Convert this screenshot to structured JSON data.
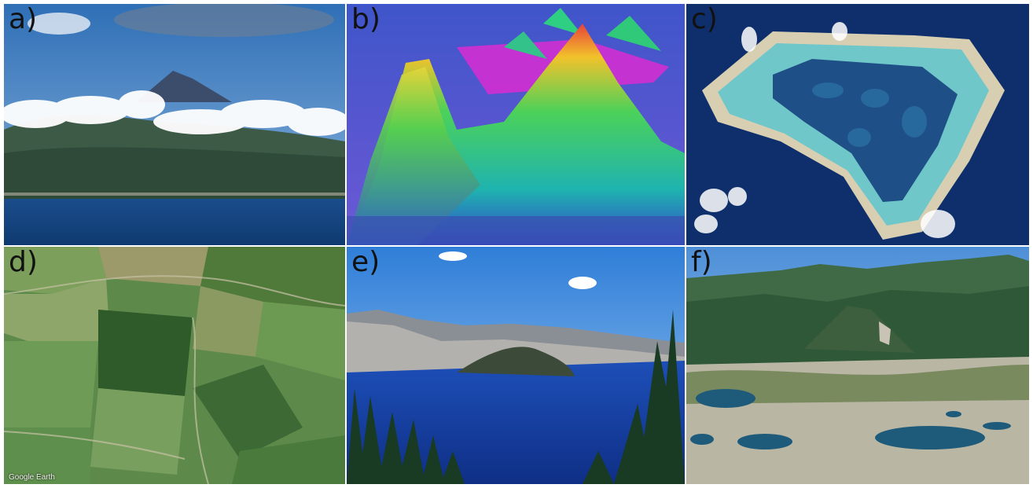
{
  "panels": [
    {
      "label": "a)",
      "subject": "volcano-island"
    },
    {
      "label": "b)",
      "subject": "seamount-bathymetry"
    },
    {
      "label": "c)",
      "subject": "atoll"
    },
    {
      "label": "d)",
      "subject": "farmland-aerial",
      "credit": "Google Earth"
    },
    {
      "label": "e)",
      "subject": "crater-lake"
    },
    {
      "label": "f)",
      "subject": "alpine-tarns"
    }
  ]
}
